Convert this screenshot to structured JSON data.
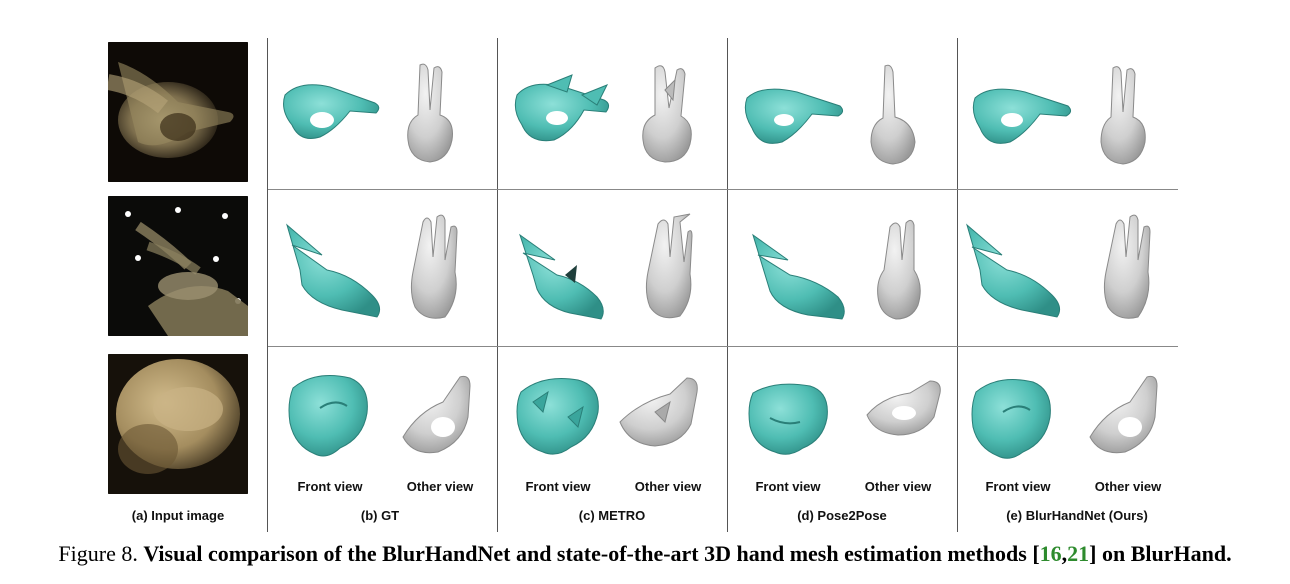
{
  "figure": {
    "caption_label": "Figure 8.",
    "caption_bold": "Visual comparison of the BlurHandNet and state-of-the-art 3D hand mesh estimation methods [",
    "cite_1": "16",
    "cite_sep": ",",
    "cite_2": "21",
    "caption_end": "] on BlurHand.",
    "colors": {
      "mesh_front": "#5cc6bd",
      "mesh_other": "#d6d6d6",
      "cite": "#2e8b2e"
    }
  },
  "columns": [
    {
      "label": "(a) Input image"
    },
    {
      "label": "(b)  GT"
    },
    {
      "label": "(c) METRO"
    },
    {
      "label": "(d) Pose2Pose"
    },
    {
      "label": "(e) BlurHandNet (Ours)"
    }
  ],
  "view_labels": {
    "front": "Front view",
    "other": "Other view"
  },
  "rows": [
    {
      "pose": "ok-sign"
    },
    {
      "pose": "v-sign"
    },
    {
      "pose": "fist"
    }
  ]
}
